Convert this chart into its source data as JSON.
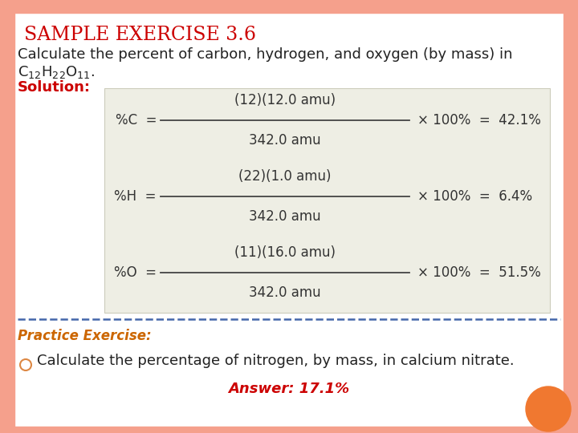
{
  "title": "SAMPLE EXERCISE 3.6",
  "title_color": "#CC0000",
  "background_color": "#FFFFFF",
  "border_color": "#F5A08C",
  "description_line1": "Calculate the percent of carbon, hydrogen, and oxygen (by mass) in",
  "description_line2_plain": "C",
  "description_line2_formula": "$C_{12}H_{22}O_{11}$.",
  "solution_label": "Solution:",
  "solution_color": "#CC0000",
  "formula_box_color": "#EEEEE4",
  "formula_box_edge": "#CCCCBB",
  "formula_C_label": "%C  =",
  "formula_C_num": "(12)(12.0 amu)",
  "formula_C_den": "342.0 amu",
  "formula_C_result": "× 100%  =  42.1%",
  "formula_H_label": "%H  =",
  "formula_H_num": "(22)(1.0 amu)",
  "formula_H_den": "342.0 amu",
  "formula_H_result": "× 100%  =  6.4%",
  "formula_O_label": "%O  =",
  "formula_O_num": "(11)(16.0 amu)",
  "formula_O_den": "342.0 amu",
  "formula_O_result": "× 100%  =  51.5%",
  "divider_color": "#4466AA",
  "practice_label": "Practice Exercise:",
  "practice_color": "#CC6600",
  "practice_text": "Calculate the percentage of nitrogen, by mass, in calcium nitrate.",
  "answer_text": "Answer: 17.1%",
  "answer_color": "#CC0000",
  "bullet_color": "#DD8844",
  "orange_circle_color": "#F07830",
  "text_color": "#222222",
  "font_size_title": 17,
  "font_size_body": 13,
  "font_size_formula": 12,
  "font_size_practice": 12,
  "font_size_answer": 13
}
